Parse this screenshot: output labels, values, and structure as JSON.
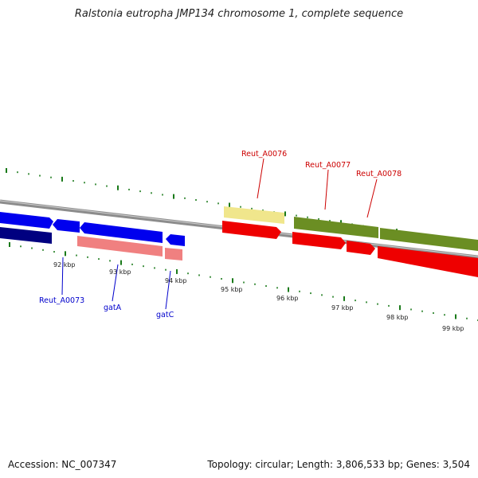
{
  "title": "Ralstonia eutropha JMP134 chromosome 1, complete sequence",
  "footer": {
    "accession": "Accession: NC_007347",
    "summary": "Topology: circular; Length: 3,806,533 bp; Genes: 3,504"
  },
  "scale_labels": [
    "92 kbp",
    "93 kbp",
    "94 kbp",
    "95 kbp",
    "96 kbp",
    "97 kbp",
    "98 kbp",
    "99 kbp"
  ],
  "gene_labels_top": [
    "Reut_A0076",
    "Reut_A0077",
    "Reut_A0078"
  ],
  "gene_labels_bottom": [
    "Reut_A0073",
    "gatA",
    "gatC"
  ],
  "colors": {
    "forward_cds": "#0000ee",
    "forward_dark": "#000080",
    "rrna_pink": "#f08080",
    "yellow": "#f0e68c",
    "olive": "#6b8e23",
    "reverse_cds": "#ee0000",
    "tick_green": "#1a7a1a",
    "backbone": "#8c8c8c",
    "label_red": "#cc0000",
    "label_blue": "#0000cc"
  }
}
